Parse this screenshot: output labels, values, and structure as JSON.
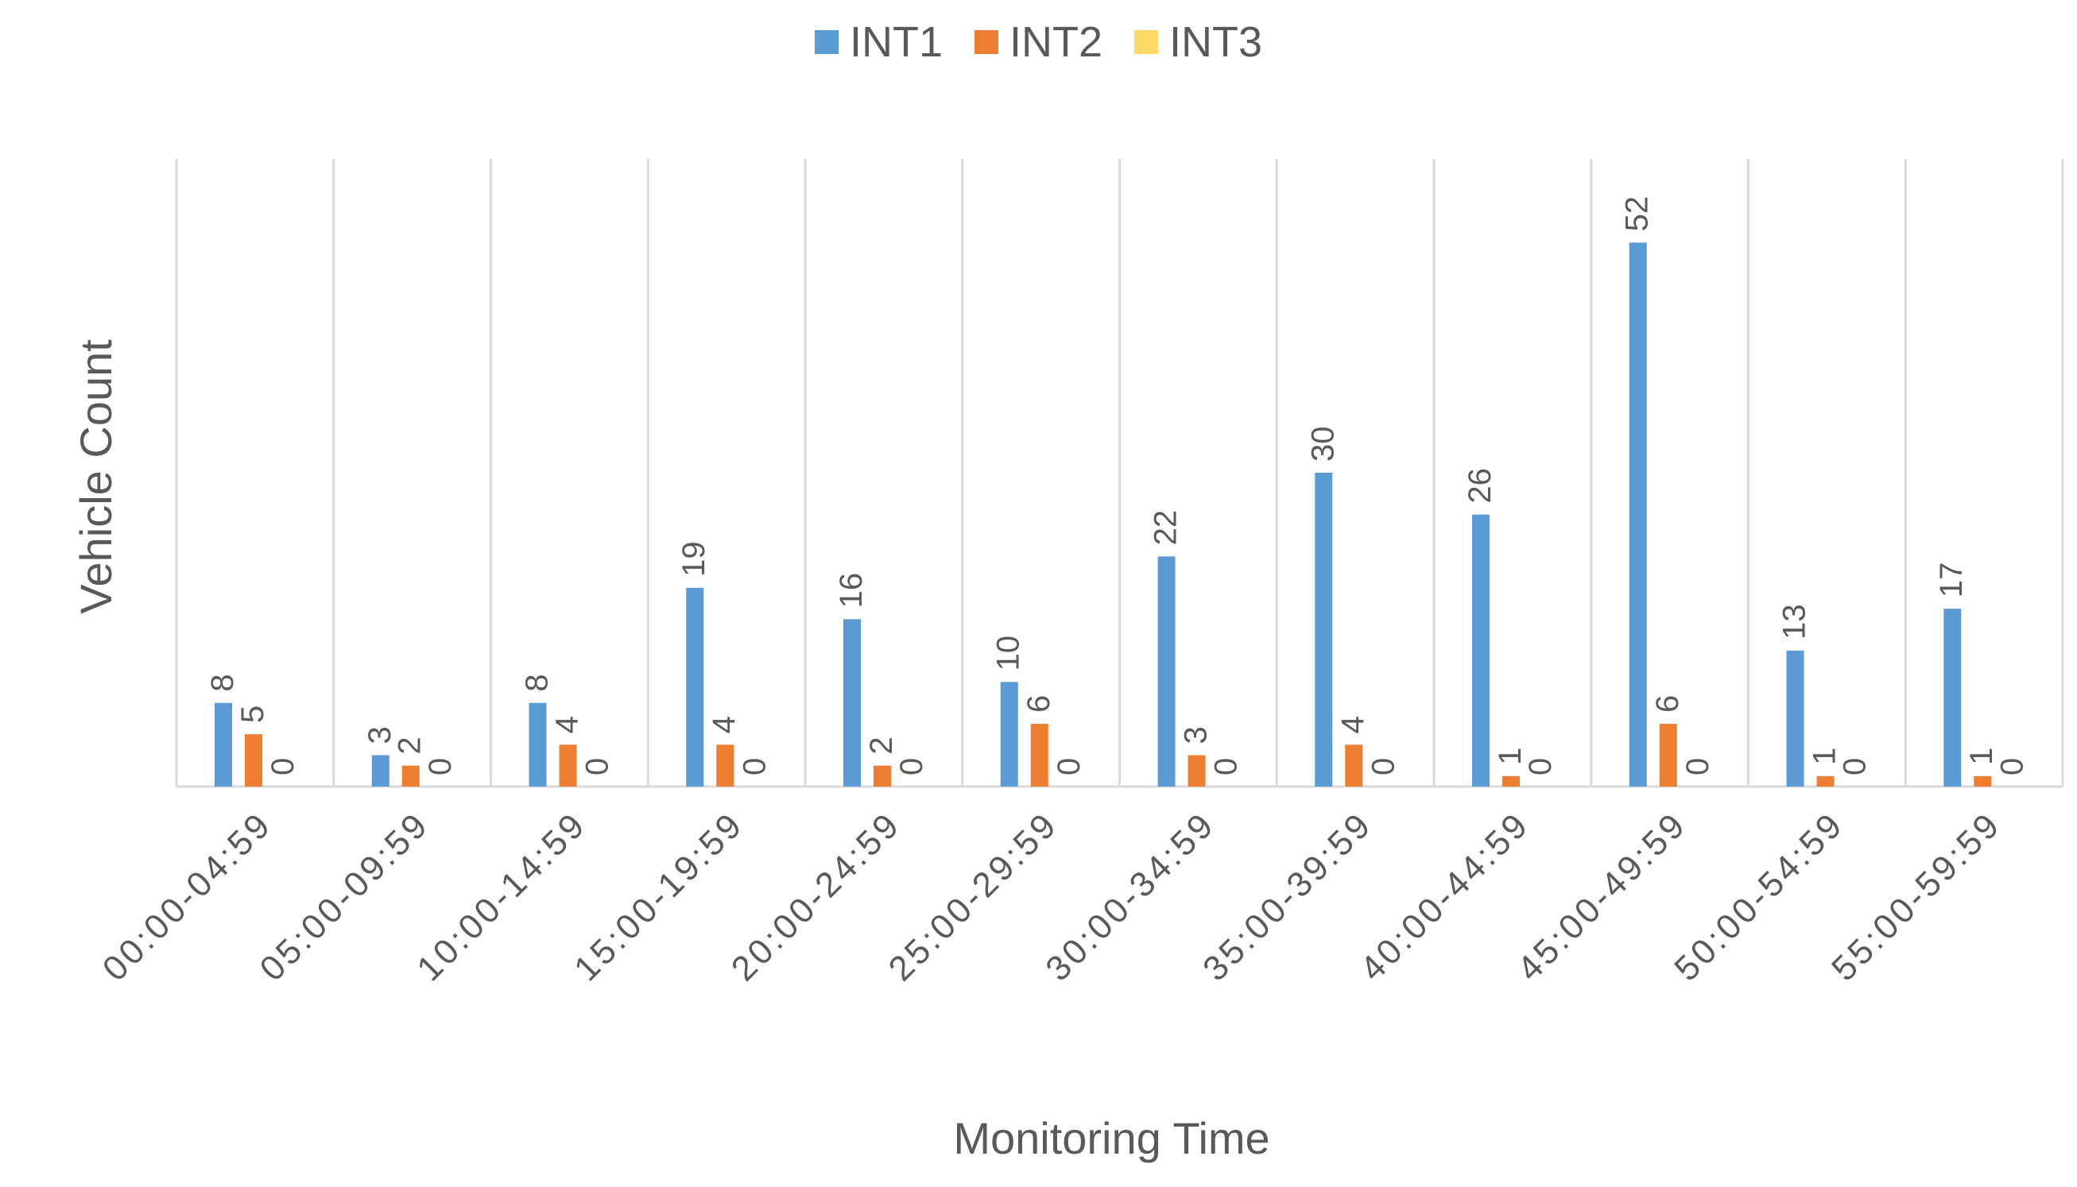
{
  "chart_data": {
    "type": "bar",
    "title": "",
    "xlabel": "Monitoring Time",
    "ylabel": "Vehicle Count",
    "ylim": [
      0,
      60
    ],
    "grid": "vertical",
    "legend_position": "top-center",
    "categories": [
      "00:00-04:59",
      "05:00-09:59",
      "10:00-14:59",
      "15:00-19:59",
      "20:00-24:59",
      "25:00-29:59",
      "30:00-34:59",
      "35:00-39:59",
      "40:00-44:59",
      "45:00-49:59",
      "50:00-54:59",
      "55:00-59:59"
    ],
    "series": [
      {
        "name": "INT1",
        "color": "#5B9BD5",
        "values": [
          8,
          3,
          8,
          19,
          16,
          10,
          22,
          30,
          26,
          52,
          13,
          17
        ]
      },
      {
        "name": "INT2",
        "color": "#ED7D31",
        "values": [
          5,
          2,
          4,
          4,
          2,
          6,
          3,
          4,
          1,
          6,
          1,
          1
        ]
      },
      {
        "name": "INT3",
        "color": "#FFD966",
        "values": [
          0,
          0,
          0,
          0,
          0,
          0,
          0,
          0,
          0,
          0,
          0,
          0
        ]
      }
    ]
  }
}
